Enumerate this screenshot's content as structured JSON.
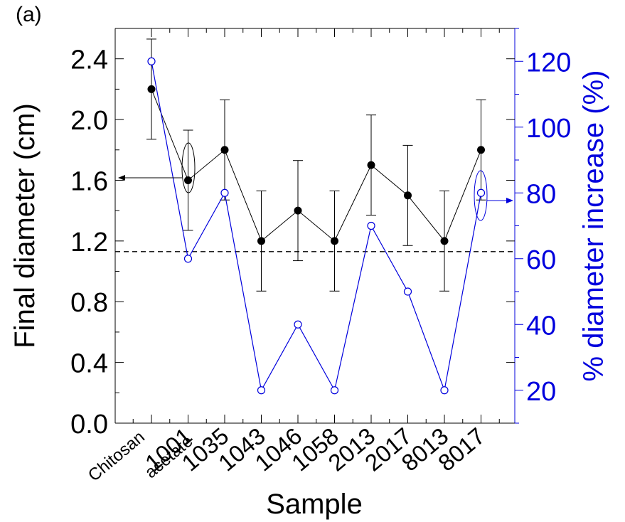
{
  "panel_label": "(a)",
  "chart_data": {
    "type": "line",
    "xlabel": "Sample",
    "ylabel_left": "Final diameter (cm)",
    "ylabel_right": "% diameter increase (%)",
    "categories": [
      "Chitosan acetate",
      "1001",
      "1035",
      "1043",
      "1046",
      "1058",
      "2013",
      "2017",
      "8013",
      "8017"
    ],
    "ylim_left": [
      0.0,
      2.6
    ],
    "yticks_left": [
      "0.0",
      "0.4",
      "0.8",
      "1.2",
      "1.6",
      "2.0",
      "2.4"
    ],
    "ylim_right": [
      10,
      130
    ],
    "yticks_right": [
      "20",
      "40",
      "60",
      "80",
      "100",
      "120"
    ],
    "reference_line": {
      "axis": "left",
      "value": 1.13,
      "style": "dashed"
    },
    "series": [
      {
        "axis": "left",
        "marker": "filled-circle",
        "color": "#000000",
        "values": [
          2.2,
          1.6,
          1.8,
          1.2,
          1.4,
          1.2,
          1.7,
          1.5,
          1.2,
          1.8
        ],
        "error": [
          0.33,
          0.33,
          0.33,
          0.33,
          0.33,
          0.33,
          0.33,
          0.33,
          0.33,
          0.33
        ]
      },
      {
        "axis": "right",
        "marker": "open-circle",
        "color": "#0000dd",
        "values": [
          120,
          60,
          80,
          20,
          40,
          20,
          70,
          50,
          20,
          80
        ]
      }
    ]
  }
}
